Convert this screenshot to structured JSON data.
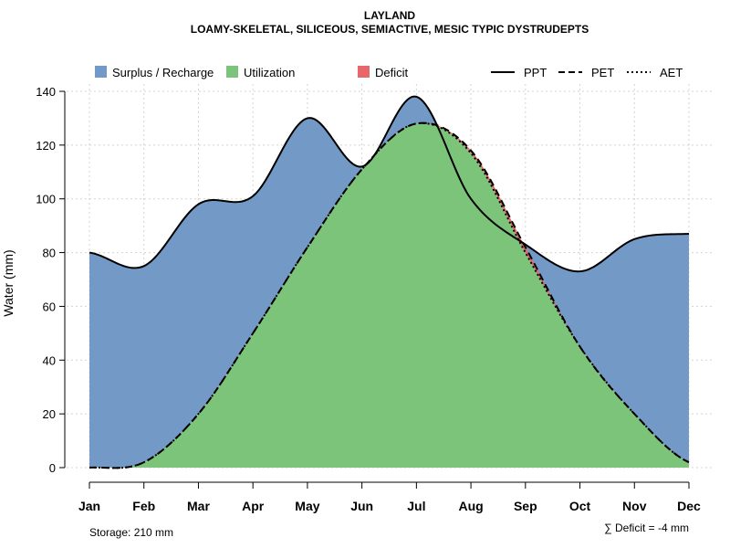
{
  "chart_data": {
    "type": "area",
    "title": "LAYLAND",
    "subtitle": "LOAMY-SKELETAL, SILICEOUS, SEMIACTIVE, MESIC TYPIC DYSTRUDEPTS",
    "xlabel": "",
    "ylabel": "Water (mm)",
    "categories": [
      "Jan",
      "Feb",
      "Mar",
      "Apr",
      "May",
      "Jun",
      "Jul",
      "Aug",
      "Sep",
      "Oct",
      "Nov",
      "Dec"
    ],
    "ylim": [
      0,
      140
    ],
    "yticks": [
      0,
      20,
      40,
      60,
      80,
      100,
      120,
      140
    ],
    "grid": true,
    "legend_placement": "top",
    "area_legend": [
      {
        "label": "Surplus / Recharge",
        "color": "#7399c6"
      },
      {
        "label": "Utilization",
        "color": "#7dc47b"
      },
      {
        "label": "Deficit",
        "color": "#e8686a"
      }
    ],
    "line_legend": [
      {
        "label": "PPT",
        "dash": "solid"
      },
      {
        "label": "PET",
        "dash": "dashed"
      },
      {
        "label": "AET",
        "dash": "dotted"
      }
    ],
    "series": [
      {
        "name": "PPT",
        "values": [
          80,
          75,
          98,
          101,
          130,
          112,
          138,
          100,
          83,
          73,
          85,
          87
        ]
      },
      {
        "name": "PET",
        "values": [
          0,
          2,
          20,
          50,
          82,
          111,
          128,
          118,
          82,
          45,
          20,
          2
        ]
      },
      {
        "name": "AET",
        "values": [
          0,
          2,
          20,
          50,
          82,
          111,
          128,
          117,
          80,
          45,
          20,
          2
        ]
      }
    ],
    "footnotes": {
      "storage": "Storage: 210 mm",
      "deficit": "∑ Deficit = -4 mm"
    }
  },
  "colors": {
    "surplus": "#7399c6",
    "utilization": "#7dc47b",
    "deficit": "#e8686a",
    "grid": "#d3d3d3"
  }
}
